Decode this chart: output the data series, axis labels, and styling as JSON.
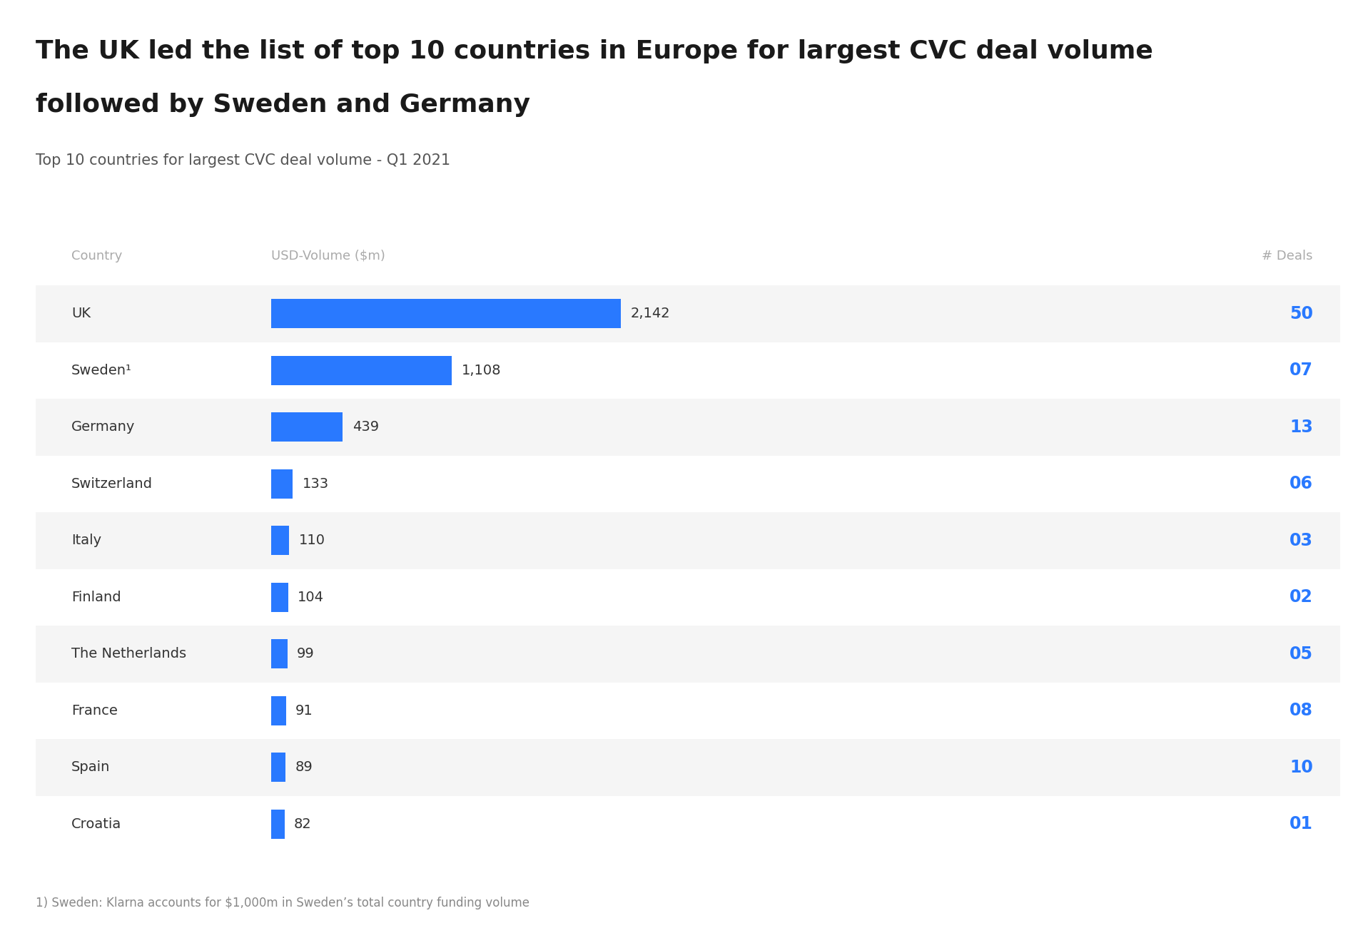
{
  "title_line1": "The UK led the list of top 10 countries in Europe for largest CVC deal volume",
  "title_line2": "followed by Sweden and Germany",
  "subtitle": "Top 10 countries for largest CVC deal volume - Q1 2021",
  "col_country": "Country",
  "col_volume": "USD-Volume ($m)",
  "col_deals": "# Deals",
  "footnote": "1) Sweden: Klarna accounts for $1,000m in Sweden’s total country funding volume",
  "countries": [
    "UK",
    "Sweden¹",
    "Germany",
    "Switzerland",
    "Italy",
    "Finland",
    "The Netherlands",
    "France",
    "Spain",
    "Croatia"
  ],
  "volumes": [
    2142,
    1108,
    439,
    133,
    110,
    104,
    99,
    91,
    89,
    82
  ],
  "volume_labels": [
    "2,142",
    "1,108",
    "439",
    "133",
    "110",
    "104",
    "99",
    "91",
    "89",
    "82"
  ],
  "deals": [
    "50",
    "07",
    "13",
    "06",
    "03",
    "02",
    "05",
    "08",
    "10",
    "01"
  ],
  "bar_color": "#2979FF",
  "deals_color": "#2979FF",
  "title_color": "#1a1a1a",
  "subtitle_color": "#555555",
  "header_color": "#aaaaaa",
  "country_color": "#333333",
  "volume_label_color": "#333333",
  "footnote_color": "#888888",
  "stripe_color": "#f5f5f5",
  "background_color": "#ffffff",
  "max_volume": 2142,
  "title_fontsize": 26,
  "subtitle_fontsize": 15,
  "header_fontsize": 13,
  "row_fontsize": 14,
  "deals_fontsize": 17,
  "footnote_fontsize": 12,
  "stripe_indices": [
    0,
    2,
    4,
    6,
    8
  ]
}
